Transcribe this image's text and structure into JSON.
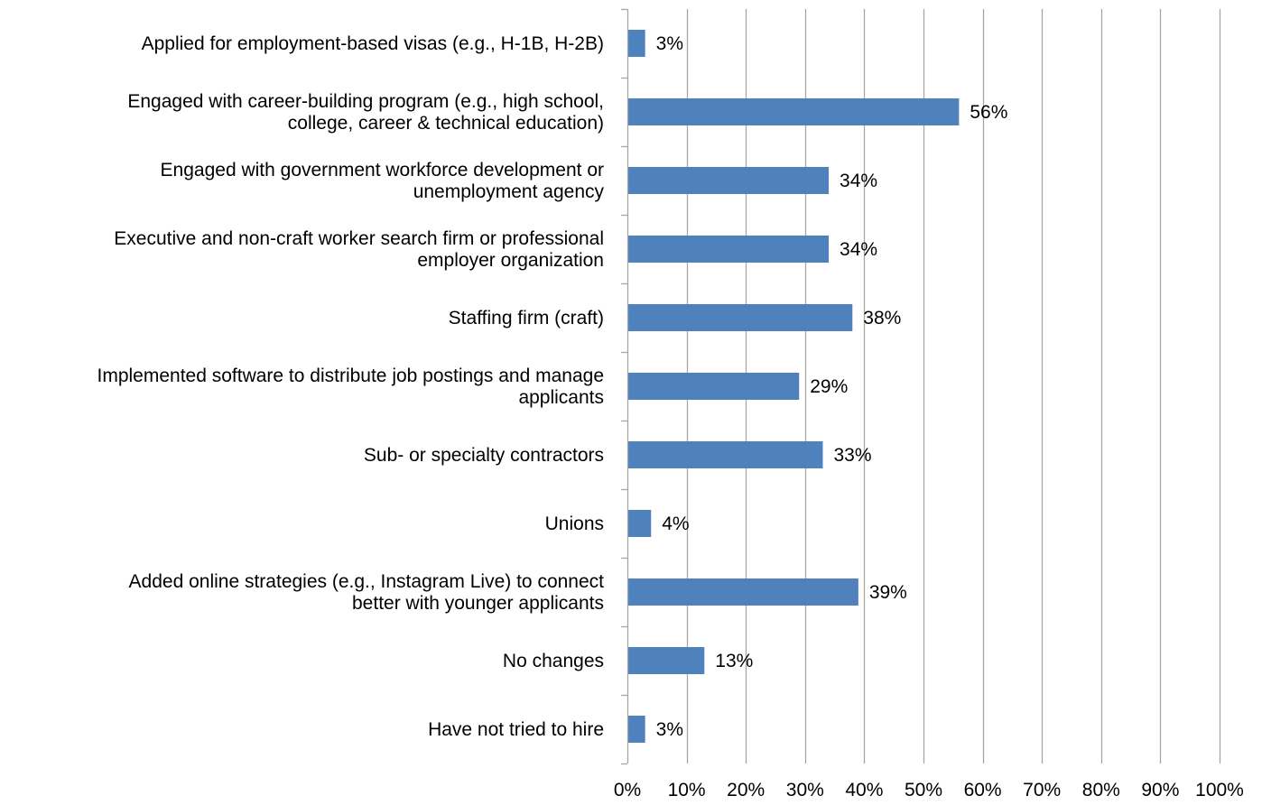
{
  "chart_data": {
    "type": "bar",
    "orientation": "horizontal",
    "title": "",
    "xlabel": "",
    "ylabel": "",
    "xlim": [
      0,
      100
    ],
    "x_tick_values": [
      0,
      10,
      20,
      30,
      40,
      50,
      60,
      70,
      80,
      90,
      100
    ],
    "x_tick_labels": [
      "0%",
      "10%",
      "20%",
      "30%",
      "40%",
      "50%",
      "60%",
      "70%",
      "80%",
      "90%",
      "100%"
    ],
    "grid": "vertical",
    "legend": "none",
    "bar_color": "#4F81BD",
    "grid_color": "#A6A6A6",
    "categories": [
      [
        "Applied for employment-based visas (e.g., H-1B, H-2B)"
      ],
      [
        "Engaged with career-building program (e.g., high school,",
        "college, career & technical education)"
      ],
      [
        "Engaged with government workforce development or",
        "unemployment agency"
      ],
      [
        "Executive and non-craft worker search firm or professional",
        "employer organization"
      ],
      [
        "Staffing firm (craft)"
      ],
      [
        "Implemented software to distribute job postings and manage",
        "applicants"
      ],
      [
        "Sub- or specialty contractors"
      ],
      [
        "Unions"
      ],
      [
        "Added online strategies (e.g., Instagram Live) to connect",
        "better with younger applicants"
      ],
      [
        "No changes"
      ],
      [
        "Have not tried to hire"
      ]
    ],
    "values": [
      3,
      56,
      34,
      34,
      38,
      29,
      33,
      4,
      39,
      13,
      3
    ],
    "data_labels": [
      "3%",
      "56%",
      "34%",
      "34%",
      "38%",
      "29%",
      "33%",
      "4%",
      "39%",
      "13%",
      "3%"
    ]
  }
}
